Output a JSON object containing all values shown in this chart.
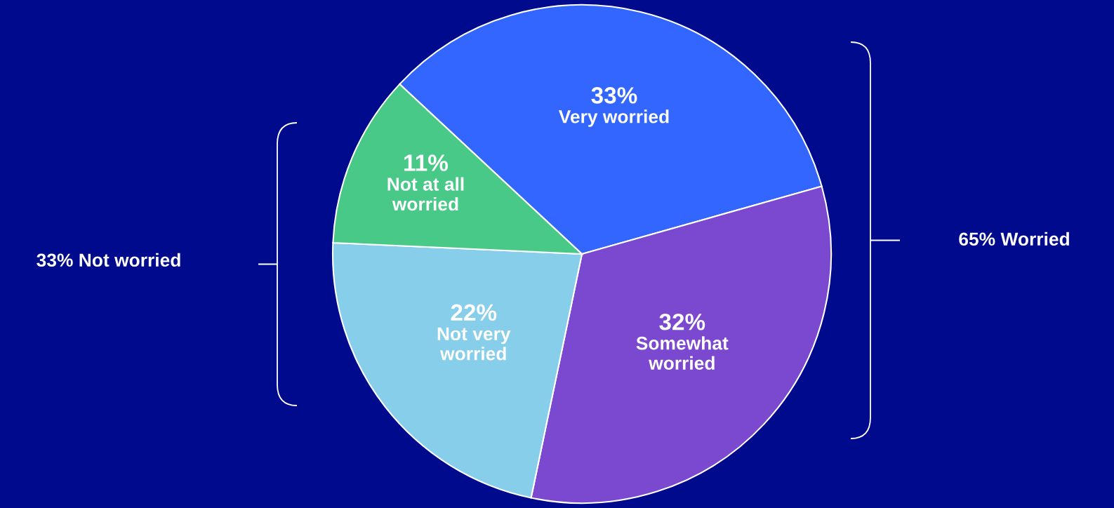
{
  "chart_data": {
    "type": "pie",
    "categories": [
      "Very worried",
      "Somewhat worried",
      "Not very worried",
      "Not at all worried"
    ],
    "values": [
      33,
      32,
      22,
      11
    ],
    "colors": [
      "#3366ff",
      "#7b48d0",
      "#87ceeb",
      "#48c987"
    ],
    "value_labels": [
      "33%",
      "32%",
      "22%",
      "11%"
    ],
    "annotations": [
      "33% Not worried",
      "65% Worried"
    ]
  }
}
